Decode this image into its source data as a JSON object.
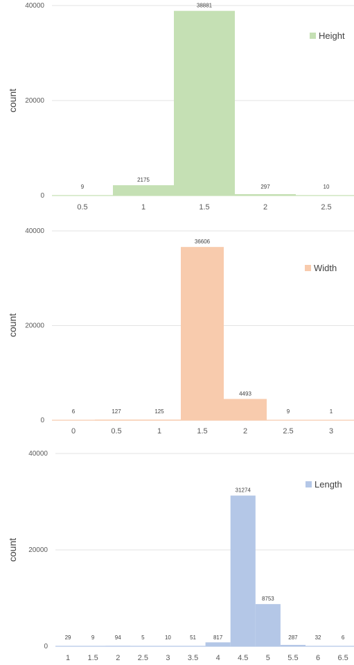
{
  "chart_data": [
    {
      "type": "bar",
      "categories": [
        "0.5",
        "1",
        "1.5",
        "2",
        "2.5"
      ],
      "series": [
        {
          "name": "Height",
          "values": [
            9,
            2175,
            38881,
            297,
            10
          ],
          "color": "#c5e0b4"
        }
      ],
      "ylabel": "count",
      "xlabel": "",
      "ylim": [
        0,
        40000
      ],
      "yticks": [
        "0",
        "20000",
        "40000"
      ],
      "grid": true,
      "legend": "top-right"
    },
    {
      "type": "bar",
      "categories": [
        "0",
        "0.5",
        "1",
        "1.5",
        "2",
        "2.5",
        "3"
      ],
      "series": [
        {
          "name": "Width",
          "values": [
            6,
            127,
            125,
            36606,
            4493,
            9,
            1
          ],
          "color": "#f8cbad"
        }
      ],
      "ylabel": "count",
      "xlabel": "",
      "ylim": [
        0,
        40000
      ],
      "yticks": [
        "0",
        "20000",
        "40000"
      ],
      "grid": true,
      "legend": "top-right"
    },
    {
      "type": "bar",
      "categories": [
        "1",
        "1.5",
        "2",
        "2.5",
        "3",
        "3.5",
        "4",
        "4.5",
        "5",
        "5.5",
        "6",
        "6.5"
      ],
      "series": [
        {
          "name": "Length",
          "values": [
            29,
            9,
            94,
            5,
            10,
            51,
            817,
            31274,
            8753,
            287,
            32,
            6
          ],
          "color": "#b4c7e7"
        }
      ],
      "ylabel": "count",
      "xlabel": "",
      "ylim": [
        0,
        40000
      ],
      "yticks": [
        "0",
        "20000",
        "40000"
      ],
      "grid": true,
      "legend": "top-right"
    }
  ]
}
